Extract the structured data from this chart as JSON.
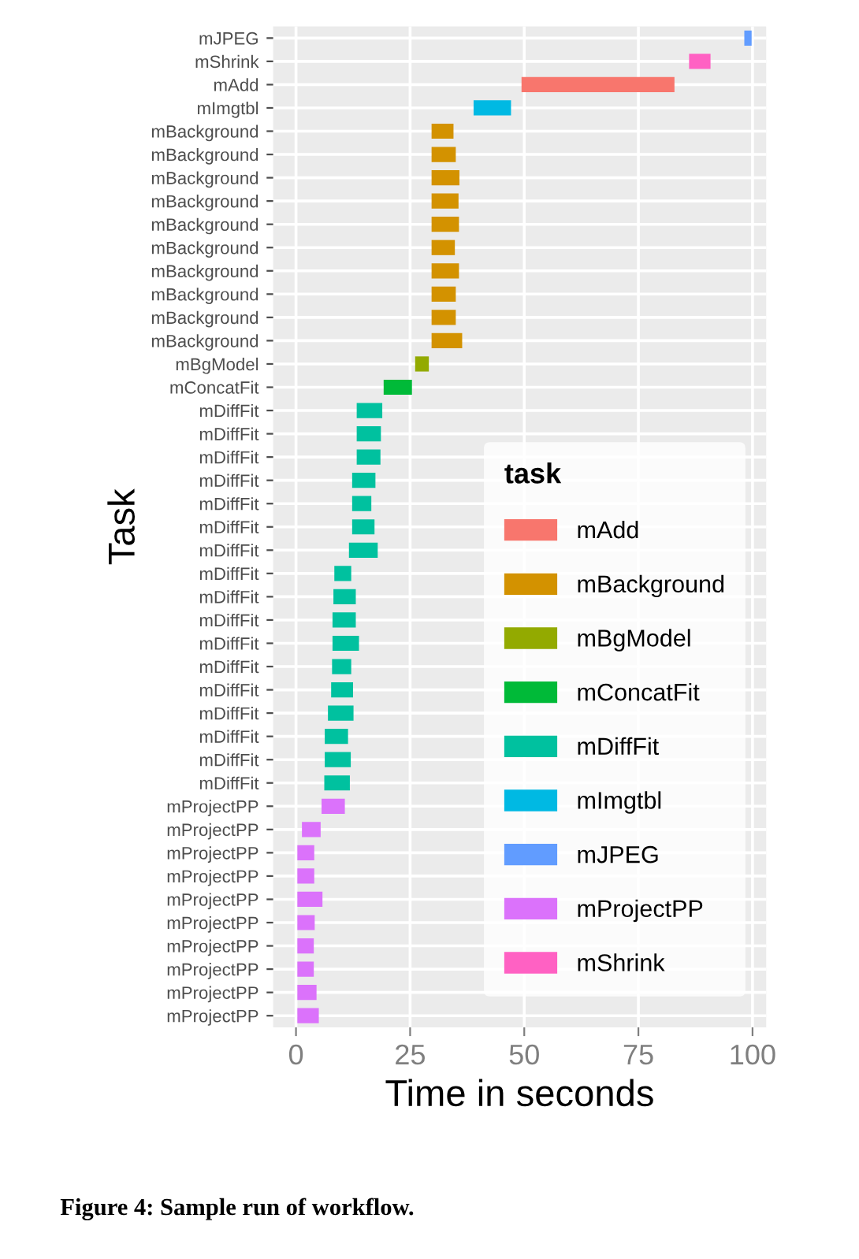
{
  "chart_data": {
    "type": "bar",
    "orientation": "horizontal",
    "xlabel": "Time in seconds",
    "ylabel": "Task",
    "legend_title": "task",
    "categories": [
      "mJPEG",
      "mShrink",
      "mAdd",
      "mImgtbl",
      "mBackground",
      "mBackground",
      "mBackground",
      "mBackground",
      "mBackground",
      "mBackground",
      "mBackground",
      "mBackground",
      "mBackground",
      "mBackground",
      "mBgModel",
      "mConcatFit",
      "mDiffFit",
      "mDiffFit",
      "mDiffFit",
      "mDiffFit",
      "mDiffFit",
      "mDiffFit",
      "mDiffFit",
      "mDiffFit",
      "mDiffFit",
      "mDiffFit",
      "mDiffFit",
      "mDiffFit",
      "mDiffFit",
      "mDiffFit",
      "mDiffFit",
      "mDiffFit",
      "mDiffFit",
      "mProjectPP",
      "mProjectPP",
      "mProjectPP",
      "mProjectPP",
      "mProjectPP",
      "mProjectPP",
      "mProjectPP",
      "mProjectPP",
      "mProjectPP",
      "mProjectPP"
    ],
    "series": [
      {
        "name": "mAdd",
        "color": "#f8766d",
        "base": [
          null,
          null,
          49.4,
          null,
          null,
          null,
          null,
          null,
          null,
          null,
          null,
          null,
          null,
          null,
          null,
          null,
          null,
          null,
          null,
          null,
          null,
          null,
          null,
          null,
          null,
          null,
          null,
          null,
          null,
          null,
          null,
          null,
          null,
          null,
          null,
          null,
          null,
          null,
          null,
          null,
          null,
          null,
          null
        ],
        "values": [
          null,
          null,
          33.5,
          null,
          null,
          null,
          null,
          null,
          null,
          null,
          null,
          null,
          null,
          null,
          null,
          null,
          null,
          null,
          null,
          null,
          null,
          null,
          null,
          null,
          null,
          null,
          null,
          null,
          null,
          null,
          null,
          null,
          null,
          null,
          null,
          null,
          null,
          null,
          null,
          null,
          null,
          null,
          null
        ]
      },
      {
        "name": "mBackground",
        "color": "#d39200",
        "base": [
          null,
          null,
          null,
          null,
          29.7,
          29.7,
          29.7,
          29.7,
          29.7,
          29.7,
          29.7,
          29.7,
          29.7,
          29.7,
          null,
          null,
          null,
          null,
          null,
          null,
          null,
          null,
          null,
          null,
          null,
          null,
          null,
          null,
          null,
          null,
          null,
          null,
          null,
          null,
          null,
          null,
          null,
          null,
          null,
          null,
          null,
          null,
          null
        ],
        "values": [
          null,
          null,
          null,
          null,
          4.8,
          5.3,
          6.1,
          5.9,
          6.0,
          5.1,
          6.0,
          5.3,
          5.3,
          6.7,
          null,
          null,
          null,
          null,
          null,
          null,
          null,
          null,
          null,
          null,
          null,
          null,
          null,
          null,
          null,
          null,
          null,
          null,
          null,
          null,
          null,
          null,
          null,
          null,
          null,
          null,
          null,
          null,
          null
        ]
      },
      {
        "name": "mBgModel",
        "color": "#93aa00",
        "base": [
          null,
          null,
          null,
          null,
          null,
          null,
          null,
          null,
          null,
          null,
          null,
          null,
          null,
          null,
          26.1,
          null,
          null,
          null,
          null,
          null,
          null,
          null,
          null,
          null,
          null,
          null,
          null,
          null,
          null,
          null,
          null,
          null,
          null,
          null,
          null,
          null,
          null,
          null,
          null,
          null,
          null,
          null,
          null
        ],
        "values": [
          null,
          null,
          null,
          null,
          null,
          null,
          null,
          null,
          null,
          null,
          null,
          null,
          null,
          null,
          3.0,
          null,
          null,
          null,
          null,
          null,
          null,
          null,
          null,
          null,
          null,
          null,
          null,
          null,
          null,
          null,
          null,
          null,
          null,
          null,
          null,
          null,
          null,
          null,
          null,
          null,
          null,
          null,
          null
        ]
      },
      {
        "name": "mConcatFit",
        "color": "#00ba38",
        "base": [
          null,
          null,
          null,
          null,
          null,
          null,
          null,
          null,
          null,
          null,
          null,
          null,
          null,
          null,
          null,
          19.2,
          null,
          null,
          null,
          null,
          null,
          null,
          null,
          null,
          null,
          null,
          null,
          null,
          null,
          null,
          null,
          null,
          null,
          null,
          null,
          null,
          null,
          null,
          null,
          null,
          null,
          null,
          null
        ],
        "values": [
          null,
          null,
          null,
          null,
          null,
          null,
          null,
          null,
          null,
          null,
          null,
          null,
          null,
          null,
          null,
          6.2,
          null,
          null,
          null,
          null,
          null,
          null,
          null,
          null,
          null,
          null,
          null,
          null,
          null,
          null,
          null,
          null,
          null,
          null,
          null,
          null,
          null,
          null,
          null,
          null,
          null,
          null,
          null
        ]
      },
      {
        "name": "mDiffFit",
        "color": "#00c19f",
        "base": [
          null,
          null,
          null,
          null,
          null,
          null,
          null,
          null,
          null,
          null,
          null,
          null,
          null,
          null,
          null,
          null,
          13.3,
          13.3,
          13.3,
          12.3,
          12.3,
          12.3,
          11.6,
          8.4,
          8.2,
          8.0,
          8.0,
          7.9,
          7.7,
          7.0,
          6.3,
          6.3,
          6.2,
          null,
          null,
          null,
          null,
          null,
          null,
          null,
          null,
          null,
          null
        ],
        "values": [
          null,
          null,
          null,
          null,
          null,
          null,
          null,
          null,
          null,
          null,
          null,
          null,
          null,
          null,
          null,
          null,
          5.6,
          5.3,
          5.2,
          5.1,
          4.2,
          4.9,
          6.3,
          3.7,
          4.9,
          5.1,
          5.8,
          4.2,
          4.8,
          5.6,
          5.1,
          5.7,
          5.6,
          null,
          null,
          null,
          null,
          null,
          null,
          null,
          null,
          null,
          null
        ]
      },
      {
        "name": "mImgtbl",
        "color": "#00b9e3",
        "base": [
          null,
          null,
          null,
          38.9,
          null,
          null,
          null,
          null,
          null,
          null,
          null,
          null,
          null,
          null,
          null,
          null,
          null,
          null,
          null,
          null,
          null,
          null,
          null,
          null,
          null,
          null,
          null,
          null,
          null,
          null,
          null,
          null,
          null,
          null,
          null,
          null,
          null,
          null,
          null,
          null,
          null,
          null,
          null
        ],
        "values": [
          null,
          null,
          null,
          8.2,
          null,
          null,
          null,
          null,
          null,
          null,
          null,
          null,
          null,
          null,
          null,
          null,
          null,
          null,
          null,
          null,
          null,
          null,
          null,
          null,
          null,
          null,
          null,
          null,
          null,
          null,
          null,
          null,
          null,
          null,
          null,
          null,
          null,
          null,
          null,
          null,
          null,
          null,
          null
        ]
      },
      {
        "name": "mJPEG",
        "color": "#619cff",
        "base": [
          98.2,
          null,
          null,
          null,
          null,
          null,
          null,
          null,
          null,
          null,
          null,
          null,
          null,
          null,
          null,
          null,
          null,
          null,
          null,
          null,
          null,
          null,
          null,
          null,
          null,
          null,
          null,
          null,
          null,
          null,
          null,
          null,
          null,
          null,
          null,
          null,
          null,
          null,
          null,
          null,
          null,
          null,
          null
        ],
        "values": [
          1.6,
          null,
          null,
          null,
          null,
          null,
          null,
          null,
          null,
          null,
          null,
          null,
          null,
          null,
          null,
          null,
          null,
          null,
          null,
          null,
          null,
          null,
          null,
          null,
          null,
          null,
          null,
          null,
          null,
          null,
          null,
          null,
          null,
          null,
          null,
          null,
          null,
          null,
          null,
          null,
          null,
          null,
          null
        ]
      },
      {
        "name": "mProjectPP",
        "color": "#db72fb",
        "base": [
          null,
          null,
          null,
          null,
          null,
          null,
          null,
          null,
          null,
          null,
          null,
          null,
          null,
          null,
          null,
          null,
          null,
          null,
          null,
          null,
          null,
          null,
          null,
          null,
          null,
          null,
          null,
          null,
          null,
          null,
          null,
          null,
          null,
          5.6,
          1.3,
          0.3,
          0.3,
          0.3,
          0.3,
          0.3,
          0.3,
          0.3,
          0.3
        ],
        "values": [
          null,
          null,
          null,
          null,
          null,
          null,
          null,
          null,
          null,
          null,
          null,
          null,
          null,
          null,
          null,
          null,
          null,
          null,
          null,
          null,
          null,
          null,
          null,
          null,
          null,
          null,
          null,
          null,
          null,
          null,
          null,
          null,
          null,
          5.1,
          4.1,
          3.7,
          3.7,
          5.5,
          3.8,
          3.6,
          3.6,
          4.2,
          4.7
        ]
      },
      {
        "name": "mShrink",
        "color": "#ff61c3",
        "base": [
          null,
          86.1,
          null,
          null,
          null,
          null,
          null,
          null,
          null,
          null,
          null,
          null,
          null,
          null,
          null,
          null,
          null,
          null,
          null,
          null,
          null,
          null,
          null,
          null,
          null,
          null,
          null,
          null,
          null,
          null,
          null,
          null,
          null,
          null,
          null,
          null,
          null,
          null,
          null,
          null,
          null,
          null,
          null
        ],
        "values": [
          null,
          4.7,
          null,
          null,
          null,
          null,
          null,
          null,
          null,
          null,
          null,
          null,
          null,
          null,
          null,
          null,
          null,
          null,
          null,
          null,
          null,
          null,
          null,
          null,
          null,
          null,
          null,
          null,
          null,
          null,
          null,
          null,
          null,
          null,
          null,
          null,
          null,
          null,
          null,
          null,
          null,
          null,
          null
        ]
      }
    ],
    "xlim": [
      -5,
      103
    ],
    "xticks": [
      0,
      25,
      50,
      75,
      100
    ],
    "grid": true,
    "legend": "bottom right",
    "annotations": [
      "Figure 4: Sample run of workflow."
    ]
  }
}
